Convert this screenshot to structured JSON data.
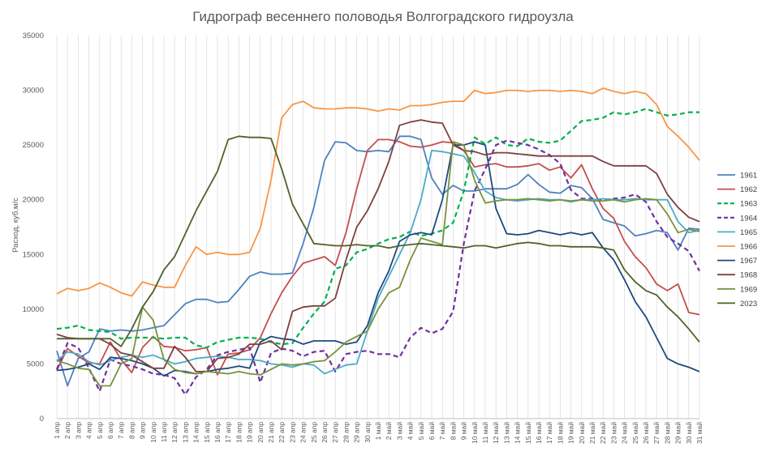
{
  "chart_data": {
    "type": "line",
    "title": "Гидрограф весеннего половодья Волгоградского гидроузла",
    "xlabel": "",
    "ylabel": "Расход, куб.м/с",
    "ylim": [
      0,
      35000
    ],
    "yticks": [
      0,
      5000,
      10000,
      15000,
      20000,
      25000,
      30000,
      35000
    ],
    "grid": "vertical",
    "legend_position": "right",
    "categories": [
      "1 апр",
      "2 апр",
      "3 апр",
      "4 апр",
      "5 апр",
      "6 апр",
      "7 апр",
      "8 апр",
      "9 апр",
      "10 апр",
      "11 апр",
      "12 апр",
      "13 апр",
      "14 апр",
      "15 апр",
      "16 апр",
      "17 апр",
      "18 апр",
      "19 апр",
      "20 апр",
      "21 апр",
      "22 апр",
      "23 апр",
      "24 апр",
      "25 апр",
      "26 апр",
      "27 апр",
      "28 апр",
      "29 апр",
      "30 апр",
      "1 май",
      "2 май",
      "3 май",
      "4 май",
      "5 май",
      "6 май",
      "7 май",
      "8 май",
      "9 май",
      "10 май",
      "11 май",
      "12 май",
      "13 май",
      "14 май",
      "15 май",
      "16 май",
      "17 май",
      "18 май",
      "19 май",
      "20 май",
      "21 май",
      "22 май",
      "23 май",
      "24 май",
      "25 май",
      "26 май",
      "27 май",
      "28 май",
      "29 май",
      "30 май",
      "31 май"
    ],
    "series": [
      {
        "name": "1961",
        "color": "#4f81bd",
        "dash": "solid",
        "values": [
          6200,
          3000,
          5500,
          6100,
          8200,
          8000,
          8100,
          8000,
          8100,
          8300,
          8500,
          9500,
          10500,
          10900,
          10900,
          10600,
          10700,
          11800,
          13000,
          13400,
          13200,
          13200,
          13300,
          16000,
          19300,
          23600,
          25300,
          25200,
          24500,
          24400,
          24500,
          24400,
          25800,
          25800,
          25500,
          22000,
          20500,
          21300,
          20800,
          20800,
          21000,
          21000,
          21000,
          21400,
          22300,
          21400,
          20700,
          20600,
          21300,
          21100,
          20100,
          18200,
          17900,
          17600,
          16700,
          16900,
          17200,
          17000,
          15400,
          17400,
          17300
        ]
      },
      {
        "name": "1962",
        "color": "#c0504d",
        "dash": "solid",
        "values": [
          4400,
          6400,
          5700,
          5100,
          5000,
          7000,
          5400,
          4200,
          6500,
          7500,
          6600,
          6500,
          6200,
          6300,
          6500,
          4000,
          5900,
          6000,
          6300,
          7400,
          9600,
          11500,
          13000,
          14200,
          14500,
          14800,
          14000,
          17000,
          21000,
          24500,
          25500,
          25500,
          25300,
          24900,
          24800,
          25000,
          25300,
          25200,
          24500,
          23000,
          23200,
          23300,
          23000,
          23000,
          23100,
          23300,
          22700,
          23000,
          22000,
          23200,
          21000,
          19200,
          18300,
          16200,
          14800,
          13800,
          12300,
          11700,
          12300,
          9700,
          9500
        ]
      },
      {
        "name": "1963",
        "color": "#00b050",
        "dash": "dash",
        "values": [
          8200,
          8300,
          8500,
          8100,
          8000,
          7900,
          7300,
          7400,
          7400,
          7400,
          7300,
          7400,
          7400,
          6700,
          6500,
          7000,
          7200,
          7400,
          7400,
          7300,
          7000,
          6800,
          6900,
          8300,
          9600,
          10700,
          13700,
          14000,
          15200,
          15500,
          16000,
          16400,
          16600,
          17100,
          16700,
          16900,
          17200,
          17900,
          20800,
          25700,
          25100,
          25700,
          25000,
          24900,
          25600,
          25300,
          25200,
          25400,
          26300,
          27200,
          27300,
          27500,
          28000,
          27800,
          28000,
          28300,
          28000,
          27700,
          27800,
          28000,
          28000
        ]
      },
      {
        "name": "1964",
        "color": "#7030a0",
        "dash": "dash",
        "values": [
          4500,
          6900,
          6500,
          4600,
          2500,
          5400,
          5000,
          4800,
          4500,
          4100,
          4000,
          3700,
          2200,
          3800,
          4500,
          5800,
          6100,
          6300,
          6500,
          3300,
          6000,
          6400,
          6200,
          5700,
          6100,
          6200,
          4300,
          5900,
          6100,
          6200,
          5900,
          5900,
          5600,
          7400,
          8300,
          7800,
          8200,
          9800,
          16000,
          20800,
          22800,
          25000,
          25400,
          25200,
          25000,
          24600,
          24100,
          23300,
          20900,
          20100,
          20100,
          20000,
          20100,
          20200,
          20500,
          19800,
          18000,
          16600,
          16000,
          15300,
          13500
        ]
      },
      {
        "name": "1965",
        "color": "#4bacc6",
        "dash": "solid",
        "values": [
          5300,
          6100,
          5900,
          5200,
          4900,
          5300,
          5600,
          5800,
          5600,
          5800,
          5400,
          5000,
          5200,
          5500,
          5600,
          5700,
          5600,
          5400,
          5400,
          5300,
          5000,
          4900,
          4700,
          5000,
          4900,
          4100,
          4500,
          4900,
          5000,
          8000,
          11000,
          13000,
          15000,
          17000,
          20000,
          24500,
          24400,
          24200,
          24000,
          22500,
          20800,
          20200,
          20000,
          19900,
          20000,
          20100,
          20000,
          20000,
          19800,
          20000,
          20000,
          20100,
          20000,
          20000,
          20100,
          20000,
          20000,
          20000,
          18000,
          17000,
          17200
        ]
      },
      {
        "name": "1966",
        "color": "#f79646",
        "dash": "solid",
        "values": [
          11400,
          11900,
          11700,
          11900,
          12400,
          12000,
          11500,
          11200,
          12500,
          12200,
          12000,
          12000,
          14000,
          15700,
          15000,
          15200,
          15000,
          15000,
          15200,
          17400,
          21800,
          27500,
          28700,
          29000,
          28400,
          28300,
          28300,
          28400,
          28400,
          28300,
          28100,
          28300,
          28200,
          28600,
          28600,
          28700,
          28900,
          29000,
          29000,
          30000,
          29700,
          29800,
          30000,
          30000,
          29900,
          30000,
          30000,
          29900,
          30000,
          29900,
          29700,
          30200,
          29900,
          29700,
          29900,
          29700,
          28700,
          26700,
          25800,
          24800,
          23600
        ]
      },
      {
        "name": "1967",
        "color": "#1f497d",
        "dash": "solid",
        "values": [
          4400,
          4500,
          4700,
          5000,
          4500,
          5600,
          5500,
          5300,
          5000,
          4600,
          3900,
          4400,
          4300,
          4100,
          4300,
          4500,
          4600,
          4800,
          4600,
          7000,
          7500,
          7300,
          7200,
          6800,
          7100,
          7100,
          7100,
          6800,
          7000,
          8500,
          11500,
          13500,
          16200,
          16800,
          17000,
          16800,
          20000,
          25000,
          25000,
          25300,
          25000,
          19200,
          16900,
          16800,
          16900,
          17200,
          17000,
          16800,
          17000,
          16800,
          17000,
          15600,
          14500,
          12700,
          10700,
          9300,
          7400,
          5500,
          5000,
          4700,
          4300
        ]
      },
      {
        "name": "1968",
        "color": "#7f3f3f",
        "dash": "solid",
        "values": [
          7700,
          7400,
          7300,
          7300,
          7300,
          6800,
          6000,
          5800,
          5200,
          4600,
          4600,
          6600,
          5600,
          4300,
          4300,
          5500,
          5600,
          5900,
          6800,
          6800,
          7100,
          6300,
          9800,
          10200,
          10300,
          10300,
          11000,
          14500,
          17500,
          19000,
          21000,
          23500,
          26800,
          27100,
          27300,
          27100,
          27000,
          25000,
          24500,
          24400,
          24100,
          24300,
          24300,
          24200,
          24100,
          24000,
          24000,
          24000,
          24000,
          24000,
          24000,
          23500,
          23100,
          23100,
          23100,
          23100,
          22400,
          20500,
          19300,
          18400,
          18000
        ]
      },
      {
        "name": "1969",
        "color": "#77933c",
        "dash": "solid",
        "values": [
          5300,
          5000,
          4600,
          4500,
          3000,
          3000,
          5000,
          5500,
          10200,
          9000,
          5400,
          4500,
          4200,
          4100,
          4300,
          4200,
          4100,
          4300,
          4100,
          4000,
          4500,
          5000,
          4900,
          5000,
          5200,
          5300,
          6100,
          7000,
          7500,
          8000,
          10000,
          11500,
          12000,
          14500,
          16500,
          16200,
          15900,
          25300,
          25000,
          21800,
          19700,
          19900,
          20000,
          20000,
          20100,
          20000,
          19900,
          20000,
          19900,
          20000,
          19900,
          19900,
          20000,
          19800,
          20000,
          20100,
          20000,
          18700,
          17000,
          17300,
          17100
        ]
      },
      {
        "name": "2023",
        "color": "#4f6228",
        "dash": "solid",
        "values": [
          7300,
          7300,
          7300,
          7300,
          7300,
          7300,
          6600,
          8200,
          10200,
          11600,
          13600,
          14800,
          16900,
          19000,
          20800,
          22600,
          25500,
          25800,
          25700,
          25700,
          25600,
          22800,
          19600,
          17800,
          16000,
          15900,
          15800,
          15800,
          15900,
          15800,
          15800,
          15600,
          15800,
          15900,
          16000,
          15900,
          15800,
          15700,
          15600,
          15800,
          15800,
          15600,
          15800,
          16000,
          16100,
          16000,
          15800,
          15800,
          15700,
          15700,
          15700,
          15600,
          15400,
          13600,
          12500,
          11700,
          11300,
          10200,
          9300,
          8200,
          7000
        ]
      }
    ]
  }
}
